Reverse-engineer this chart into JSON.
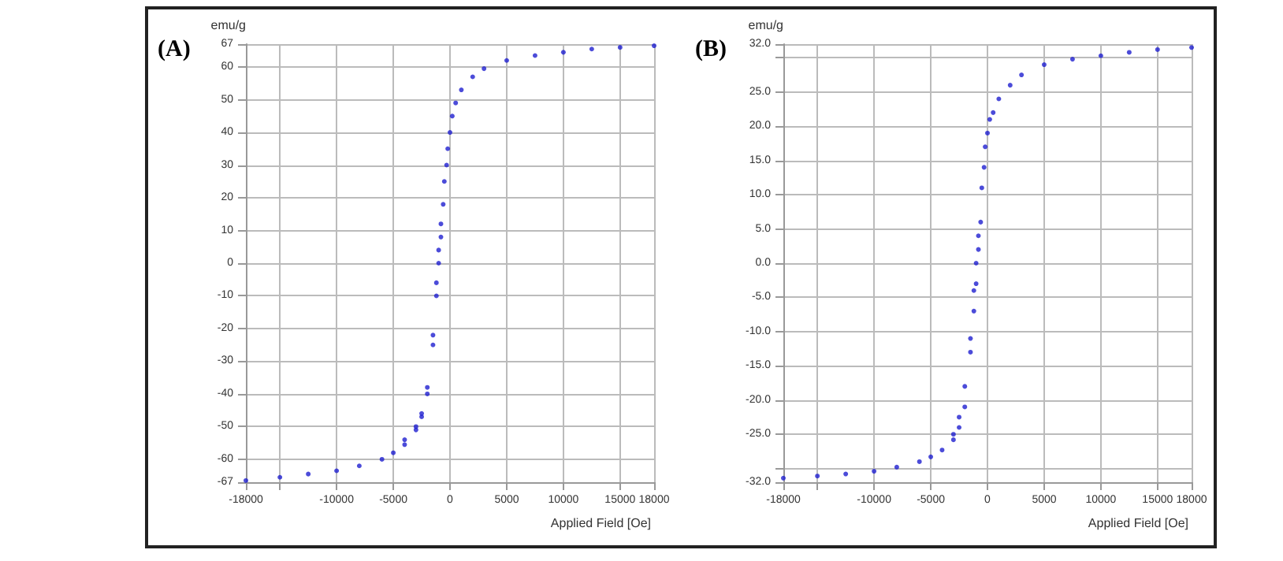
{
  "chart_data": [
    {
      "type": "scatter",
      "annotations": [
        "(A)"
      ],
      "xlabel": "Applied Field [Oe]",
      "ylabel": "emu/g",
      "xlim": [
        -18000,
        18000
      ],
      "ylim": [
        -67,
        67
      ],
      "xticks": [
        -18000,
        {
          "value": -15000,
          "label": null
        },
        -10000,
        -5000,
        0,
        5000,
        10000,
        15000,
        18000
      ],
      "yticks": [
        -67,
        -60,
        -50,
        -40,
        -30,
        -20,
        -10,
        0,
        10,
        20,
        30,
        40,
        50,
        60,
        67
      ],
      "grid": true,
      "marker": "circle",
      "series": [
        {
          "color": "#1f1fd0",
          "x": [
            18000,
            15000,
            12500,
            10000,
            7500,
            5000,
            3000,
            2000,
            1000,
            500,
            0,
            -300,
            -600,
            -800,
            -1000,
            -1200,
            -1500,
            -2000,
            -2500,
            -3000,
            -4000,
            -5000,
            -6000,
            -8000,
            -10000,
            -12500,
            -15000,
            -18000,
            -4000,
            -3000,
            -2500,
            -2000,
            -1500,
            -1200,
            -1000,
            -800,
            -500,
            -200,
            200
          ],
          "values": [
            66.5,
            66,
            65.5,
            64.5,
            63.5,
            62,
            59.5,
            57,
            53,
            49,
            40,
            30,
            18,
            8,
            0,
            -10,
            -25,
            -40,
            -47,
            -51,
            -55.5,
            -58,
            -60,
            -62,
            -63.5,
            -64.5,
            -65.5,
            -66.5,
            -54,
            -50,
            -46,
            -38,
            -22,
            -6,
            4,
            12,
            25,
            35,
            45
          ]
        }
      ]
    },
    {
      "type": "scatter",
      "annotations": [
        "(B)"
      ],
      "xlabel": "Applied Field [Oe]",
      "ylabel": "emu/g",
      "xlim": [
        -18000,
        18000
      ],
      "ylim": [
        -32,
        32
      ],
      "xticks": [
        -18000,
        {
          "value": -15000,
          "label": null
        },
        -10000,
        -5000,
        0,
        5000,
        10000,
        15000,
        18000
      ],
      "yticks": [
        {
          "value": -32,
          "label": "-32.0"
        },
        {
          "value": -30,
          "label": null
        },
        {
          "value": -25,
          "label": "-25.0"
        },
        {
          "value": -20,
          "label": "-20.0"
        },
        {
          "value": -15,
          "label": "-15.0"
        },
        {
          "value": -10,
          "label": "-10.0"
        },
        {
          "value": -5,
          "label": "-5.0"
        },
        {
          "value": 0,
          "label": "0.0"
        },
        {
          "value": 5,
          "label": "5.0"
        },
        {
          "value": 10,
          "label": "10.0"
        },
        {
          "value": 15,
          "label": "15.0"
        },
        {
          "value": 20,
          "label": "20.0"
        },
        {
          "value": 25,
          "label": "25.0"
        },
        {
          "value": 30,
          "label": null
        },
        {
          "value": 32,
          "label": "32.0"
        }
      ],
      "grid": true,
      "marker": "circle",
      "series": [
        {
          "color": "#1f1fd0",
          "x": [
            18000,
            15000,
            12500,
            10000,
            7500,
            5000,
            3000,
            2000,
            1000,
            500,
            0,
            -300,
            -600,
            -800,
            -1000,
            -1200,
            -1500,
            -2000,
            -2500,
            -3000,
            -4000,
            -5000,
            -6000,
            -8000,
            -10000,
            -12500,
            -15000,
            -18000,
            -3000,
            -2500,
            -2000,
            -1500,
            -1200,
            -1000,
            -800,
            -500,
            -200,
            200
          ],
          "values": [
            31.5,
            31.2,
            30.8,
            30.3,
            29.8,
            29,
            27.5,
            26,
            24,
            22,
            19,
            14,
            6,
            2,
            -3,
            -7,
            -13,
            -21,
            -24,
            -25.8,
            -27.3,
            -28.3,
            -29,
            -29.8,
            -30.4,
            -30.8,
            -31.1,
            -31.4,
            -25,
            -22.5,
            -18,
            -11,
            -4,
            0,
            4,
            11,
            17,
            21
          ]
        }
      ]
    }
  ]
}
